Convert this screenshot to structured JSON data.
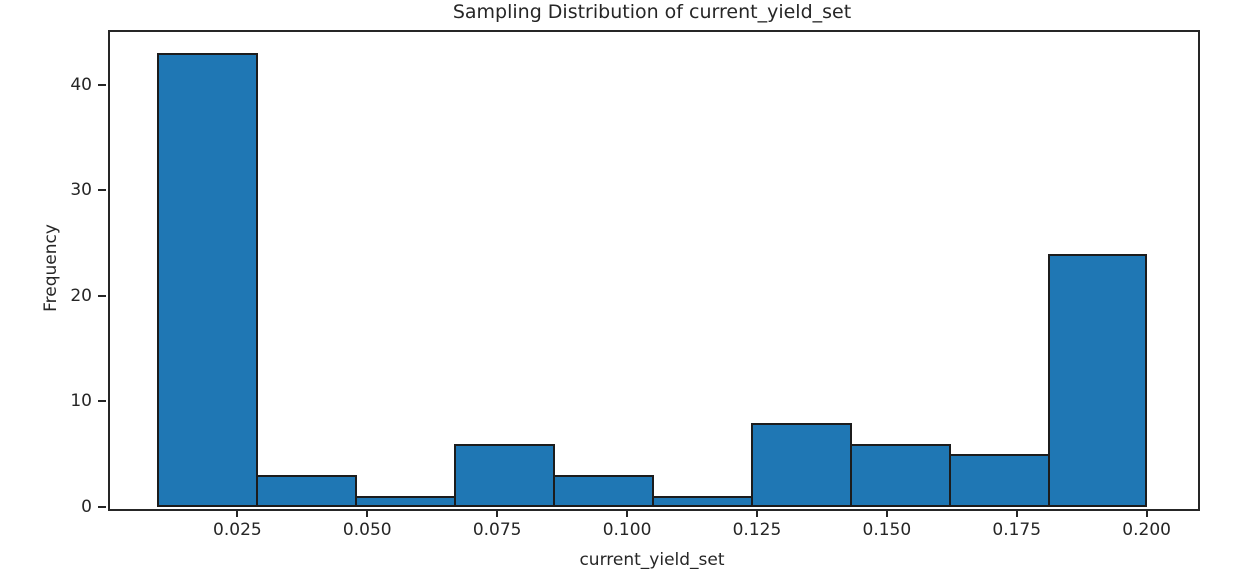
{
  "figure": {
    "background_color": "#ffffff",
    "text_color": "#262626"
  },
  "chart_data": {
    "type": "bar",
    "subtype": "histogram",
    "title": "Sampling Distribution of current_yield_set",
    "xlabel": "current_yield_set",
    "ylabel": "Frequency",
    "bin_edges": [
      0.00952,
      0.02857,
      0.04762,
      0.06667,
      0.08571,
      0.10476,
      0.12381,
      0.14286,
      0.1619,
      0.18095,
      0.2
    ],
    "frequencies": [
      43,
      3,
      1,
      6,
      3,
      1,
      8,
      6,
      5,
      24
    ],
    "total_samples": 100,
    "xticks": [
      0.025,
      0.05,
      0.075,
      0.1,
      0.125,
      0.15,
      0.175,
      0.2
    ],
    "xtick_labels": [
      "0.025",
      "0.050",
      "0.075",
      "0.100",
      "0.125",
      "0.150",
      "0.175",
      "0.200"
    ],
    "yticks": [
      0,
      10,
      20,
      30,
      40
    ],
    "ytick_labels": [
      "0",
      "10",
      "20",
      "30",
      "40"
    ],
    "xlim": [
      0.0001,
      0.2095
    ],
    "ylim": [
      0,
      45.2
    ],
    "grid": false,
    "legend": null,
    "bar_color": "#1f77b4",
    "bar_edge_color": "#1c1c1c",
    "axis_color": "#262626"
  }
}
